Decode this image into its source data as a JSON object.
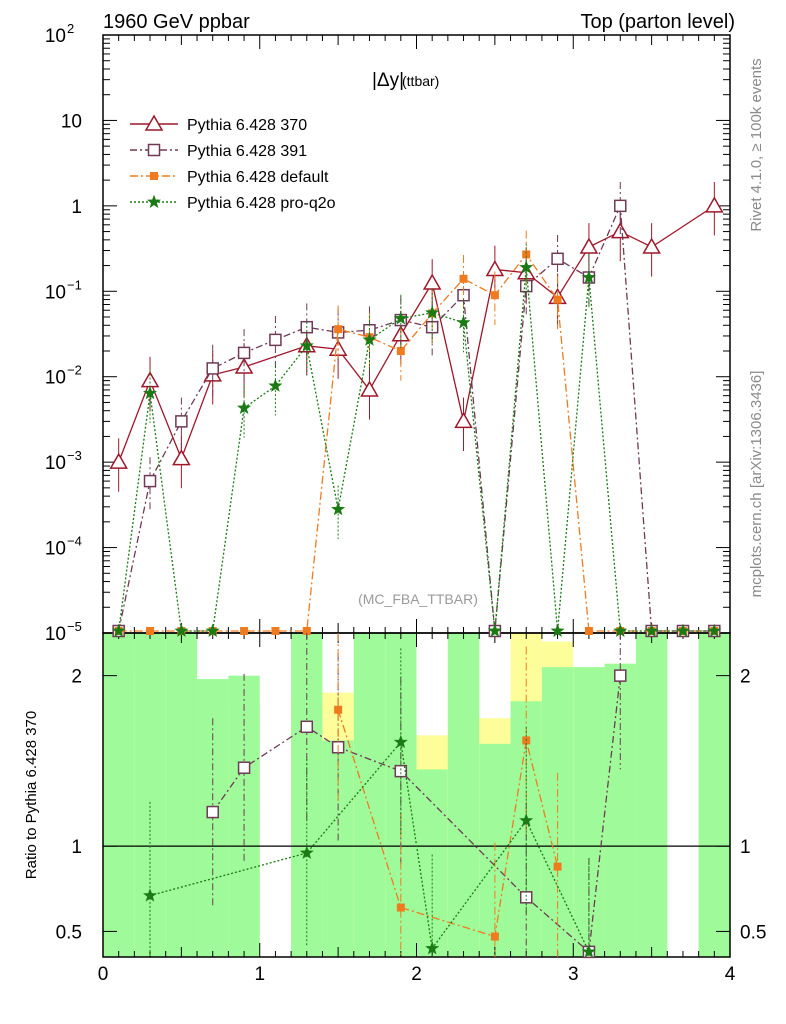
{
  "header": {
    "left": "1960 GeV ppbar",
    "right": "Top (parton level)"
  },
  "side_text": {
    "rivet": "Rivet 4.1.0, ≥ 100k events",
    "mcplots": "mcplots.cern.ch [arXiv:1306.3436]"
  },
  "chart_data": {
    "type": "line",
    "title": "|Δy| (ttbar)",
    "title_main": "|Δy|",
    "title_sub": "(ttbar)",
    "watermark": "(MC_FBA_TTBAR)",
    "xlabel": "",
    "ylabel": "",
    "ratio_ylabel": "Ratio to Pythia 6.428 370",
    "xlim": [
      0,
      4
    ],
    "ylim": [
      1e-05,
      100
    ],
    "ratio_ylim": [
      0.35,
      2.25
    ],
    "x_ticks": [
      "0",
      "1",
      "2",
      "3",
      "4"
    ],
    "y_ticks": [
      {
        "value": 100,
        "base": "10",
        "exp": "2"
      },
      {
        "value": 10,
        "base": "10",
        "exp": ""
      },
      {
        "value": 1,
        "base": "1",
        "exp": ""
      },
      {
        "value": 0.1,
        "base": "10",
        "exp": "−1"
      },
      {
        "value": 0.01,
        "base": "10",
        "exp": "−2"
      },
      {
        "value": 0.001,
        "base": "10",
        "exp": "−3"
      },
      {
        "value": 0.0001,
        "base": "10",
        "exp": "−4"
      },
      {
        "value": 1e-05,
        "base": "10",
        "exp": "−5"
      }
    ],
    "ratio_ticks": [
      {
        "value": 0.5,
        "label": "0.5"
      },
      {
        "value": 1,
        "label": "1"
      },
      {
        "value": 2,
        "label": "2"
      }
    ],
    "x": [
      0.1,
      0.3,
      0.5,
      0.7,
      0.9,
      1.1,
      1.3,
      1.5,
      1.7,
      1.9,
      2.1,
      2.3,
      2.5,
      2.7,
      2.9,
      3.1,
      3.3,
      3.5,
      3.7,
      3.9
    ],
    "series": [
      {
        "name": "Pythia 6.428 370",
        "color": "#a0162a",
        "marker": "triangle",
        "dash": "",
        "values": [
          0.001,
          0.009,
          0.0011,
          0.0105,
          0.013,
          null,
          0.023,
          0.021,
          0.007,
          0.031,
          0.125,
          0.003,
          0.18,
          0.165,
          0.085,
          0.33,
          0.5,
          0.33,
          null,
          1.0
        ]
      },
      {
        "name": "Pythia 6.428 391",
        "color": "#6e3a55",
        "marker": "square",
        "dash": "7,3,2,3",
        "values": [
          0,
          0.0006,
          0.003,
          0.0125,
          0.019,
          0.027,
          0.038,
          0.033,
          0.035,
          0.046,
          0.038,
          0.09,
          0,
          0.115,
          0.24,
          0.145,
          1.0,
          0,
          0,
          0
        ]
      },
      {
        "name": "Pythia 6.428 default",
        "color": "#f07b1f",
        "marker": "filled-square",
        "dash": "8,3,2,3",
        "values": [
          0,
          0,
          0,
          0,
          0,
          0,
          0,
          0.036,
          0.029,
          0.02,
          0.055,
          0.14,
          0.09,
          0.27,
          0.08,
          0,
          0,
          0,
          0,
          0
        ]
      },
      {
        "name": "Pythia 6.428 pro-q2o",
        "color": "#1a7a14",
        "marker": "star",
        "dash": "2,2",
        "values": [
          0,
          0.0064,
          0,
          0,
          0.0043,
          0.0078,
          0.023,
          0.00028,
          0.027,
          0.048,
          0.056,
          0.043,
          0,
          0.19,
          0,
          0.145,
          0,
          0,
          0,
          0
        ]
      }
    ],
    "ratio_series": [
      {
        "name": "Pythia 6.428 391",
        "color": "#6e3a55",
        "marker": "square",
        "dash": "7,3,2,3",
        "values": [
          null,
          null,
          null,
          1.2,
          1.46,
          null,
          1.7,
          1.58,
          null,
          1.44,
          null,
          null,
          null,
          0.7,
          null,
          0.38,
          2.0,
          null,
          null,
          null
        ]
      },
      {
        "name": "Pythia 6.428 default",
        "color": "#f07b1f",
        "marker": "filled-square",
        "dash": "8,3,2,3",
        "values": [
          null,
          null,
          null,
          null,
          null,
          null,
          null,
          1.8,
          null,
          0.64,
          null,
          null,
          0.47,
          1.62,
          0.88,
          null,
          null,
          null,
          null,
          null
        ]
      },
      {
        "name": "Pythia 6.428 pro-q2o",
        "color": "#1a7a14",
        "marker": "star",
        "dash": "2,2",
        "values": [
          null,
          0.71,
          null,
          null,
          null,
          null,
          0.96,
          null,
          null,
          1.61,
          0.4,
          null,
          null,
          1.15,
          null,
          0.38,
          null,
          null,
          null,
          null
        ]
      }
    ],
    "ratio_reference": 1
  }
}
